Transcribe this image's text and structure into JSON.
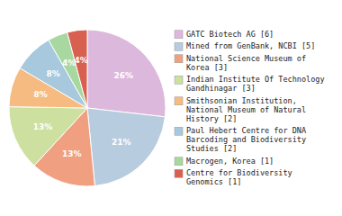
{
  "chart_data": {
    "type": "pie",
    "categories": [
      "GATC Biotech AG [6]",
      "Mined from GenBank, NCBI [5]",
      "National Science Museum of\nKorea [3]",
      "Indian Institute Of Technology\nGandhinagar [3]",
      "Smithsonian Institution,\nNational Museum of Natural\nHistory [2]",
      "Paul Hebert Centre for DNA\nBarcoding and Biodiversity\nStudies [2]",
      "Macrogen, Korea [1]",
      "Centre for Biodiversity\nGenomics [1]"
    ],
    "values": [
      26,
      21,
      13,
      13,
      8,
      8,
      4,
      4
    ],
    "value_labels": [
      "26%",
      "21%",
      "13%",
      "13%",
      "8%",
      "8%",
      "4%",
      "4%"
    ],
    "colors": [
      "#ddb8dd",
      "#b8ccdf",
      "#f0a080",
      "#cde0a0",
      "#f5bb80",
      "#a8c8de",
      "#a8d8a0",
      "#d86050"
    ],
    "data_labels": true,
    "legend": "right"
  }
}
